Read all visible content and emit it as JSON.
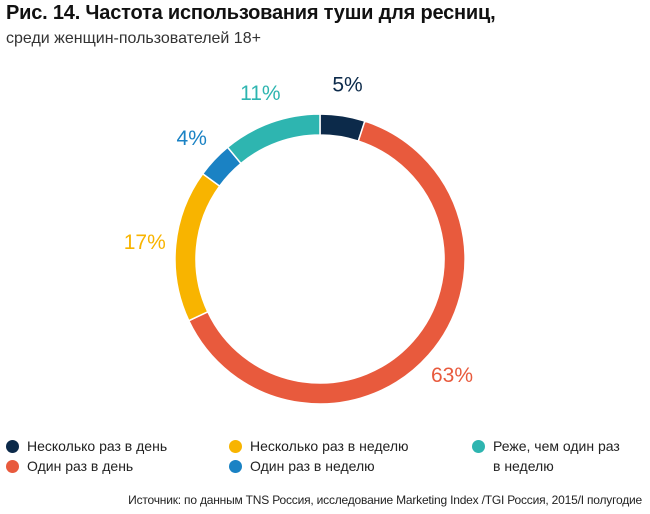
{
  "title": "Рис. 14. Частота использования туши для ресниц,",
  "subtitle": "среди женщин-пользователей 18+",
  "source": "Источник: по данным TNS Россия, исследование Marketing Index /TGI Россия, 2015/I полугодие",
  "chart_data": {
    "type": "pie",
    "donut": true,
    "unit": "%",
    "slices": [
      {
        "label": "Несколько раз в день",
        "value": 5,
        "display": "5%",
        "color": "#0c2a4a"
      },
      {
        "label": "Один раз в день",
        "value": 63,
        "display": "63%",
        "color": "#e85a3d"
      },
      {
        "label": "Несколько раз в неделю",
        "value": 17,
        "display": "17%",
        "color": "#f8b400"
      },
      {
        "label": "Один раз в неделю",
        "value": 4,
        "display": "4%",
        "color": "#1a82c4"
      },
      {
        "label": "Реже, чем один раз в неделю",
        "value": 11,
        "display": "11%",
        "color": "#2eb5b0"
      }
    ]
  },
  "legend": {
    "items": [
      {
        "label": "Несколько раз в день",
        "color": "#0c2a4a"
      },
      {
        "label": "Один раз в день",
        "color": "#e85a3d"
      },
      {
        "label": "Несколько раз в неделю",
        "color": "#f8b400"
      },
      {
        "label": "Один раз в неделю",
        "color": "#1a82c4"
      },
      {
        "label_line1": "Реже, чем один раз",
        "label_line2": "в неделю",
        "color": "#2eb5b0"
      }
    ]
  }
}
